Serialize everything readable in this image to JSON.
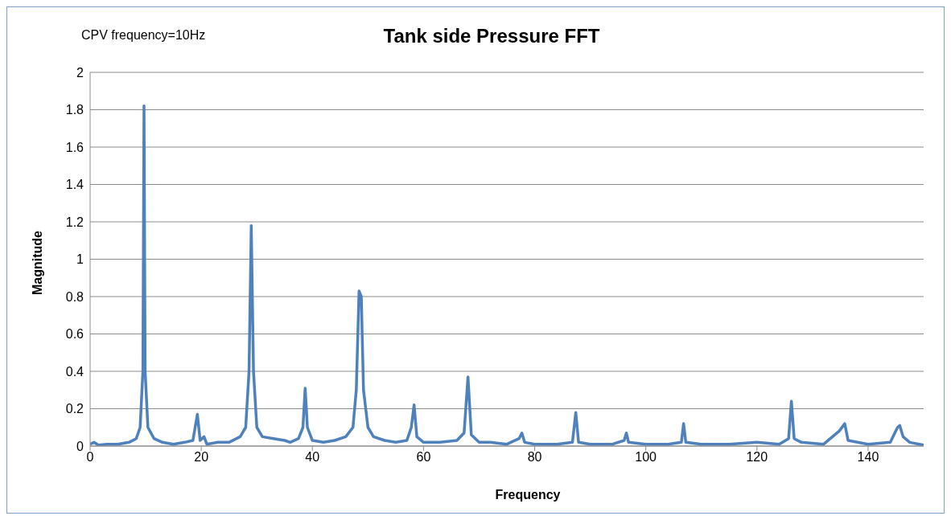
{
  "chart_data": {
    "type": "line",
    "title": "Tank side Pressure FFT",
    "xlabel": "Frequency",
    "ylabel": "Magnitude",
    "annotations": [
      "CPV frequency=10Hz"
    ],
    "xlim": [
      0,
      150
    ],
    "xticks": [
      0,
      20,
      40,
      60,
      80,
      100,
      120,
      140
    ],
    "ylim": [
      0,
      2
    ],
    "yticks": [
      0,
      0.2,
      0.4,
      0.6,
      0.8,
      1,
      1.2,
      1.4,
      1.6,
      1.8,
      2
    ],
    "grid": "y",
    "legend": false,
    "marker": "none",
    "line_style": "solid",
    "series": [
      {
        "color": "#4f81bd",
        "x": [
          0,
          0.7,
          1.5,
          3,
          5,
          7,
          8.3,
          9,
          9.5,
          9.7,
          9.9,
          10.4,
          11.5,
          13,
          15,
          17,
          18.5,
          19.3,
          19.8,
          20.5,
          21,
          23,
          25,
          27,
          28,
          28.6,
          29,
          29.4,
          30,
          31,
          33,
          35,
          36,
          37.5,
          38.3,
          38.7,
          39.1,
          40,
          42,
          44,
          46,
          47.3,
          47.9,
          48.4,
          48.8,
          49.2,
          50,
          51,
          53,
          55,
          57,
          57.8,
          58.3,
          58.8,
          60,
          63,
          66,
          67.3,
          68,
          68.6,
          70,
          72,
          75,
          77.2,
          77.7,
          78.2,
          80,
          84,
          86.8,
          87.4,
          87.9,
          90,
          94,
          96.1,
          96.5,
          96.9,
          100,
          104,
          106.4,
          106.8,
          107.2,
          110,
          115,
          120,
          124,
          125.7,
          126.2,
          126.7,
          128,
          132,
          134.8,
          135.8,
          136.4,
          140,
          144,
          145.3,
          145.7,
          146.3,
          147.5,
          150
        ],
        "values": [
          0.01,
          0.02,
          0.005,
          0.01,
          0.01,
          0.02,
          0.04,
          0.1,
          0.4,
          1.82,
          0.4,
          0.1,
          0.04,
          0.02,
          0.01,
          0.02,
          0.03,
          0.17,
          0.03,
          0.05,
          0.01,
          0.02,
          0.02,
          0.05,
          0.1,
          0.4,
          1.18,
          0.4,
          0.1,
          0.05,
          0.04,
          0.03,
          0.02,
          0.04,
          0.1,
          0.31,
          0.1,
          0.03,
          0.02,
          0.03,
          0.05,
          0.1,
          0.3,
          0.83,
          0.8,
          0.3,
          0.1,
          0.05,
          0.03,
          0.02,
          0.03,
          0.1,
          0.22,
          0.05,
          0.02,
          0.02,
          0.03,
          0.07,
          0.37,
          0.06,
          0.02,
          0.02,
          0.01,
          0.04,
          0.07,
          0.02,
          0.01,
          0.01,
          0.02,
          0.18,
          0.02,
          0.01,
          0.01,
          0.03,
          0.07,
          0.02,
          0.01,
          0.01,
          0.02,
          0.12,
          0.02,
          0.01,
          0.01,
          0.02,
          0.01,
          0.04,
          0.24,
          0.04,
          0.02,
          0.01,
          0.08,
          0.12,
          0.03,
          0.01,
          0.02,
          0.1,
          0.11,
          0.05,
          0.02,
          0.005
        ]
      }
    ]
  }
}
